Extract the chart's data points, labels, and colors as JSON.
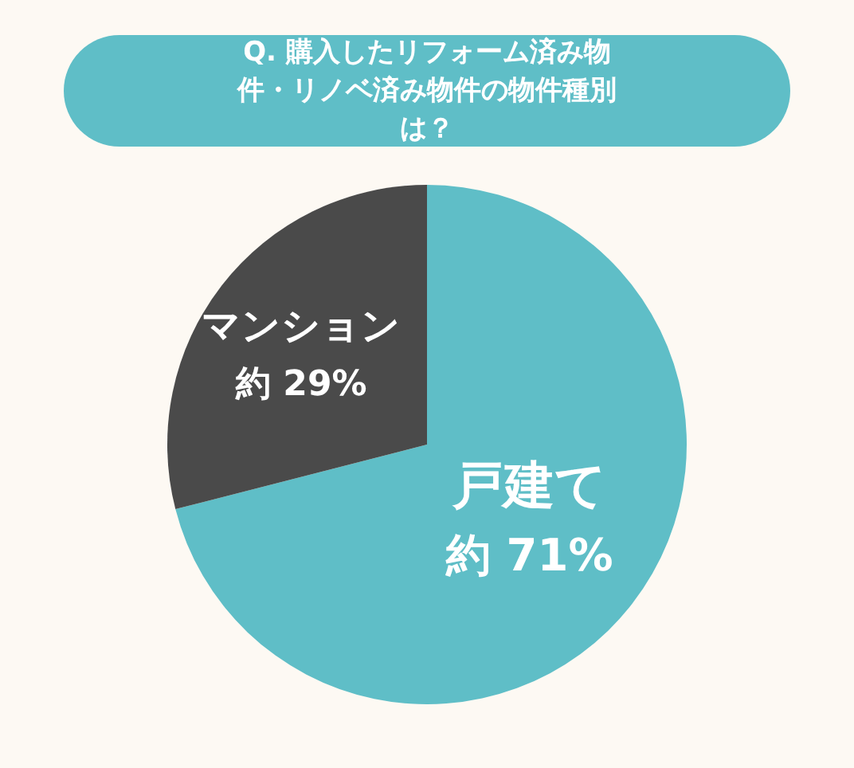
{
  "chart_data": {
    "type": "pie",
    "title": "Q. 購入したリフォーム済み物件・リノベ済み物件の物件種別は？",
    "categories": [
      "戸建て",
      "マンション"
    ],
    "values": [
      71,
      29
    ],
    "colors": [
      "#5fbec7",
      "#4a4a4a"
    ],
    "value_labels": [
      "約 71%",
      "約 29%"
    ],
    "legend": false
  }
}
